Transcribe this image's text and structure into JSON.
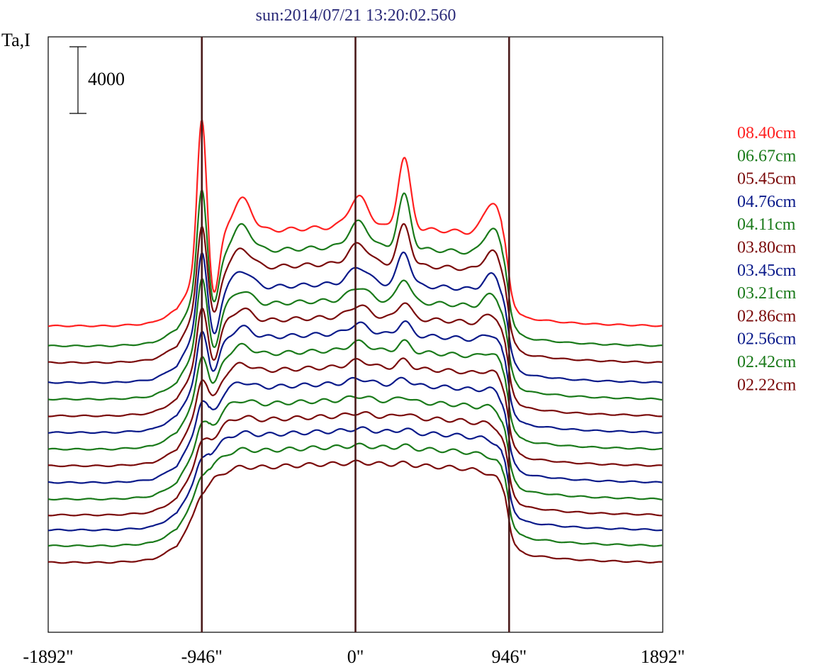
{
  "chart_data": {
    "type": "line",
    "title": "sun:2014/07/21 13:20:02.560",
    "ylabel": "Ta,I",
    "scale_bar_label": "4000",
    "scale_bar_value": 4000,
    "x_ticks": [
      "-1892\"",
      "-946\"",
      "0\"",
      "946\"",
      "1892\""
    ],
    "x_tick_values": [
      -1892,
      -946,
      0,
      946,
      1892
    ],
    "xlim": [
      -1892,
      1892
    ],
    "limb_marker_x": [
      -946,
      0,
      946
    ],
    "limb_marker_color": "#4a1a1a",
    "legend_position": "right",
    "legend": [
      {
        "name": "08.40cm",
        "color": "#ff2020"
      },
      {
        "name": "06.67cm",
        "color": "#1a7a1a"
      },
      {
        "name": "05.45cm",
        "color": "#7a0a0a"
      },
      {
        "name": "04.76cm",
        "color": "#0a1a8a"
      },
      {
        "name": "04.11cm",
        "color": "#1a7a1a"
      },
      {
        "name": "03.80cm",
        "color": "#7a0a0a"
      },
      {
        "name": "03.45cm",
        "color": "#0a1a8a"
      },
      {
        "name": "03.21cm",
        "color": "#1a7a1a"
      },
      {
        "name": "02.86cm",
        "color": "#7a0a0a"
      },
      {
        "name": "02.56cm",
        "color": "#0a1a8a"
      },
      {
        "name": "02.42cm",
        "color": "#1a7a1a"
      },
      {
        "name": "02.22cm",
        "color": "#7a0a0a"
      }
    ],
    "series_colors": [
      "#ff2020",
      "#1a7a1a",
      "#7a0a0a",
      "#0a1a8a",
      "#1a7a1a",
      "#7a0a0a",
      "#0a1a8a",
      "#1a7a1a",
      "#7a0a0a",
      "#0a1a8a",
      "#1a7a1a",
      "#7a0a0a",
      "#0a1a8a",
      "#1a7a1a",
      "#7a0a0a"
    ],
    "series_offsets": [
      13200,
      12000,
      11000,
      9800,
      8800,
      7800,
      6800,
      5800,
      4800,
      3800,
      2800,
      1850,
      950,
      0,
      -1000
    ],
    "profile_x": [
      -1892,
      -1500,
      -1320,
      -1250,
      -1180,
      -1100,
      -1040,
      -1000,
      -975,
      -960,
      -946,
      -930,
      -915,
      -895,
      -870,
      -820,
      -780,
      -720,
      -660,
      -580,
      -500,
      -400,
      -300,
      -200,
      -100,
      0,
      100,
      200,
      300,
      400,
      500,
      580,
      660,
      720,
      780,
      820,
      870,
      900,
      920,
      935,
      946,
      960,
      980,
      1010,
      1050,
      1100,
      1200,
      1300,
      1500,
      1892
    ],
    "base_profile": [
      0,
      0,
      100,
      200,
      500,
      1000,
      2000,
      2800,
      3400,
      3700,
      3900,
      4100,
      4400,
      4700,
      5000,
      5300,
      5500,
      5600,
      5650,
      5700,
      5750,
      5800,
      5850,
      5900,
      5920,
      5930,
      5920,
      5900,
      5850,
      5800,
      5750,
      5700,
      5650,
      5550,
      5400,
      5200,
      4900,
      4500,
      4000,
      3200,
      2500,
      1700,
      1100,
      700,
      500,
      400,
      300,
      200,
      100,
      0
    ],
    "feature_amplitudes": {
      "limb_peak": [
        8600,
        5600,
        4400,
        4000,
        3400,
        2600,
        2200,
        1700,
        1300,
        1000,
        700,
        550,
        400,
        300,
        200
      ],
      "limb_dip": [
        3200,
        2600,
        2200,
        2200,
        1900,
        1600,
        1300,
        1100,
        900,
        700,
        500,
        300,
        200,
        100,
        0
      ],
      "active_region": [
        4200,
        3200,
        2400,
        2000,
        1400,
        1000,
        800,
        600,
        500,
        400,
        300,
        250,
        200,
        150,
        100
      ],
      "east_bump": [
        2000,
        1600,
        1200,
        1100,
        900,
        800,
        700,
        600,
        500,
        400,
        300,
        250,
        200,
        150,
        100
      ],
      "center_bump": [
        1800,
        1500,
        1200,
        1000,
        800,
        700,
        600,
        500,
        400,
        300,
        250,
        200,
        150,
        100,
        80
      ],
      "west_bump": [
        2400,
        2000,
        1600,
        1400,
        1200,
        1000,
        800,
        700,
        600,
        500,
        400,
        300,
        250,
        200,
        150
      ]
    }
  }
}
